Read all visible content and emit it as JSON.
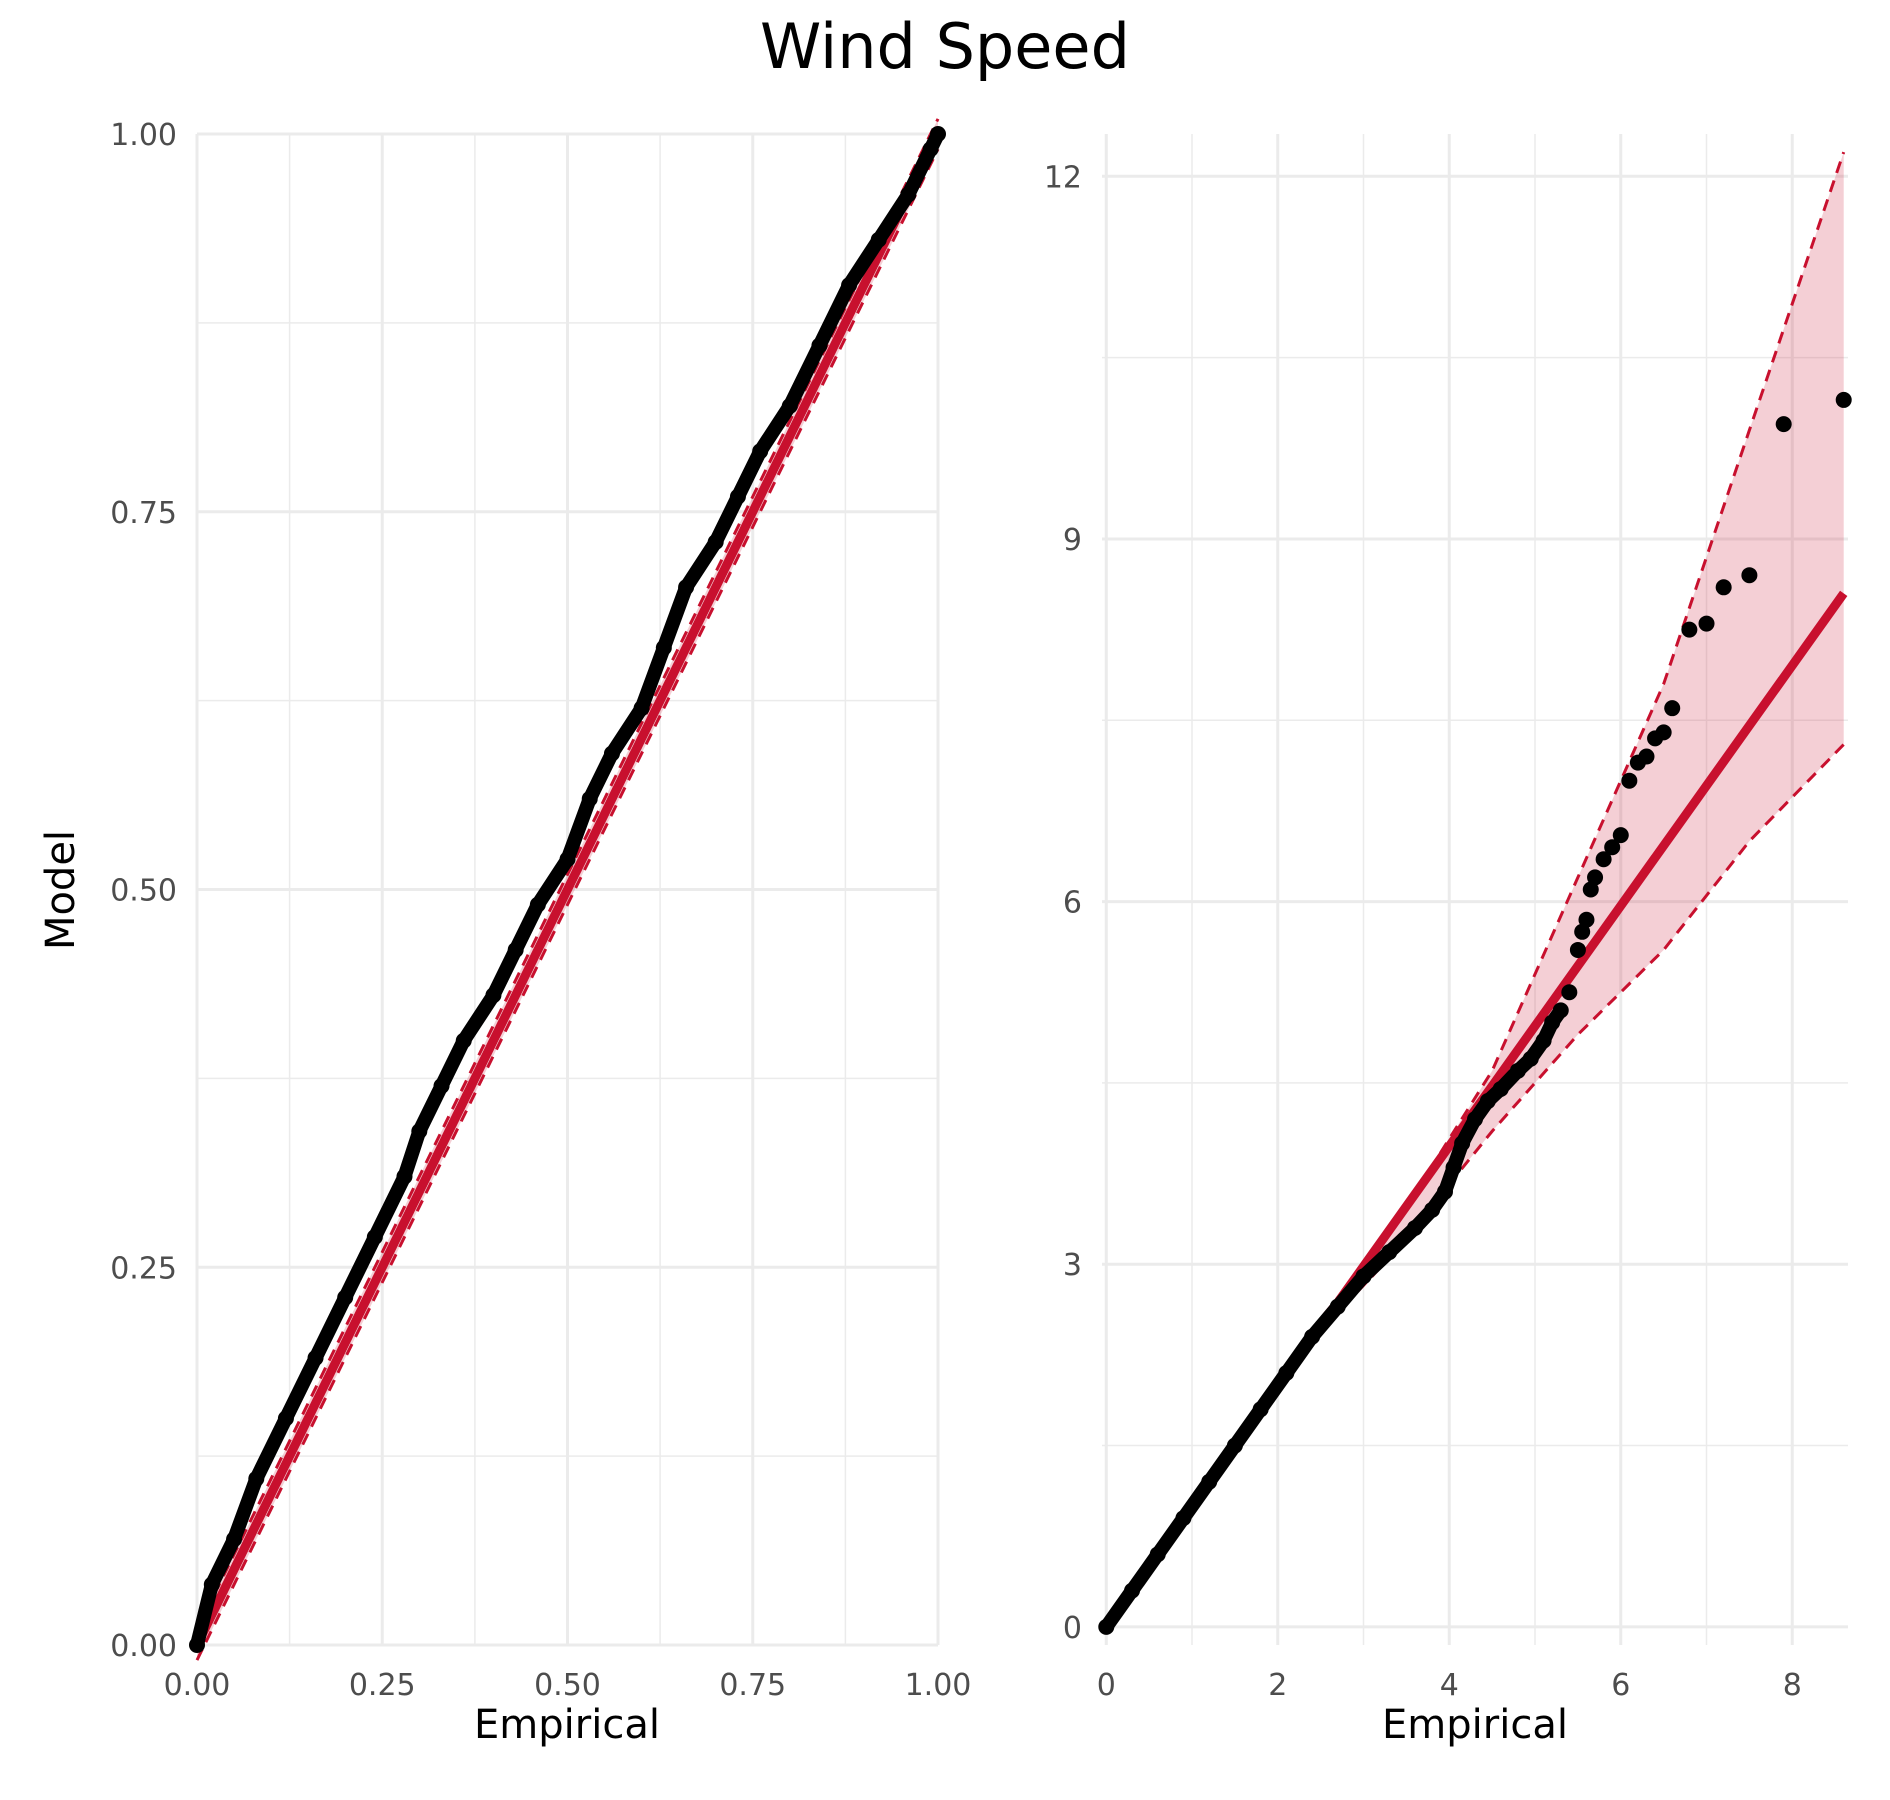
{
  "figure": {
    "title": "Wind Speed"
  },
  "colors": {
    "band": "#c8102e",
    "line": "#c8102e",
    "points": "#000000",
    "grid": "#ebebeb",
    "tick_text": "#4d4d4d"
  },
  "chart_data": [
    {
      "type": "scatter",
      "title": "",
      "xlabel": "Empirical",
      "ylabel": "Model",
      "xlim": [
        0,
        1
      ],
      "ylim": [
        0,
        1
      ],
      "x_ticks": [
        "0.00",
        "0.25",
        "0.50",
        "0.75",
        "1.00"
      ],
      "y_ticks": [
        "0.00",
        "0.25",
        "0.50",
        "0.75",
        "1.00"
      ],
      "grid": true,
      "reference_line": {
        "slope": 1,
        "intercept": 0
      },
      "confidence_band": {
        "x": [
          0,
          1
        ],
        "lower": [
          -0.01,
          0.99
        ],
        "upper": [
          0.01,
          1.01
        ]
      },
      "series": [
        {
          "values": [
            [
              0.0,
              0.0
            ],
            [
              0.02,
              0.04
            ],
            [
              0.05,
              0.07
            ],
            [
              0.08,
              0.11
            ],
            [
              0.12,
              0.15
            ],
            [
              0.16,
              0.19
            ],
            [
              0.2,
              0.23
            ],
            [
              0.24,
              0.27
            ],
            [
              0.28,
              0.31
            ],
            [
              0.3,
              0.34
            ],
            [
              0.33,
              0.37
            ],
            [
              0.36,
              0.4
            ],
            [
              0.4,
              0.43
            ],
            [
              0.43,
              0.46
            ],
            [
              0.46,
              0.49
            ],
            [
              0.5,
              0.52
            ],
            [
              0.53,
              0.56
            ],
            [
              0.56,
              0.59
            ],
            [
              0.6,
              0.62
            ],
            [
              0.63,
              0.66
            ],
            [
              0.66,
              0.7
            ],
            [
              0.7,
              0.73
            ],
            [
              0.73,
              0.76
            ],
            [
              0.76,
              0.79
            ],
            [
              0.8,
              0.82
            ],
            [
              0.84,
              0.86
            ],
            [
              0.88,
              0.9
            ],
            [
              0.92,
              0.93
            ],
            [
              0.96,
              0.96
            ],
            [
              0.99,
              0.99
            ],
            [
              1.0,
              1.0
            ]
          ]
        }
      ]
    },
    {
      "type": "scatter",
      "title": "",
      "xlabel": "Empirical",
      "ylabel": "",
      "xlim": [
        -0.05,
        8.65
      ],
      "ylim": [
        -0.15,
        12.35
      ],
      "x_ticks": [
        "0",
        "2",
        "4",
        "6",
        "8"
      ],
      "y_ticks": [
        "0",
        "3",
        "6",
        "9",
        "12"
      ],
      "grid": true,
      "reference_line": {
        "x": [
          0,
          8.6
        ],
        "y": [
          0,
          8.55
        ]
      },
      "confidence_band": {
        "x": [
          0,
          2.5,
          3.3,
          4.5,
          5.5,
          6.5,
          7.5,
          8.6
        ],
        "lower": [
          0,
          2.45,
          3.05,
          4.1,
          4.9,
          5.6,
          6.5,
          7.3
        ],
        "upper": [
          0,
          2.55,
          3.25,
          4.6,
          6.2,
          7.8,
          9.9,
          12.2
        ]
      },
      "series": [
        {
          "values": [
            [
              0,
              0
            ],
            [
              0.3,
              0.3
            ],
            [
              0.6,
              0.6
            ],
            [
              0.9,
              0.9
            ],
            [
              1.2,
              1.2
            ],
            [
              1.5,
              1.5
            ],
            [
              1.8,
              1.8
            ],
            [
              2.1,
              2.1
            ],
            [
              2.4,
              2.4
            ],
            [
              2.7,
              2.65
            ],
            [
              3.0,
              2.9
            ],
            [
              3.3,
              3.1
            ],
            [
              3.6,
              3.3
            ],
            [
              3.8,
              3.45
            ],
            [
              3.95,
              3.6
            ],
            [
              4.05,
              3.8
            ],
            [
              4.15,
              4.0
            ],
            [
              4.3,
              4.2
            ],
            [
              4.45,
              4.35
            ],
            [
              4.6,
              4.45
            ],
            [
              4.8,
              4.6
            ],
            [
              4.95,
              4.7
            ],
            [
              5.1,
              4.85
            ],
            [
              5.2,
              5.0
            ],
            [
              5.3,
              5.1
            ],
            [
              5.4,
              5.25
            ],
            [
              5.5,
              5.6
            ],
            [
              5.55,
              5.75
            ],
            [
              5.6,
              5.85
            ],
            [
              5.65,
              6.1
            ],
            [
              5.7,
              6.2
            ],
            [
              5.8,
              6.35
            ],
            [
              5.9,
              6.45
            ],
            [
              6.0,
              6.55
            ],
            [
              6.1,
              7.0
            ],
            [
              6.2,
              7.15
            ],
            [
              6.3,
              7.2
            ],
            [
              6.4,
              7.35
            ],
            [
              6.5,
              7.4
            ],
            [
              6.6,
              7.6
            ],
            [
              6.8,
              8.25
            ],
            [
              7.0,
              8.3
            ],
            [
              7.2,
              8.6
            ],
            [
              7.5,
              8.7
            ],
            [
              7.9,
              9.95
            ],
            [
              8.6,
              10.15
            ]
          ]
        }
      ]
    }
  ]
}
